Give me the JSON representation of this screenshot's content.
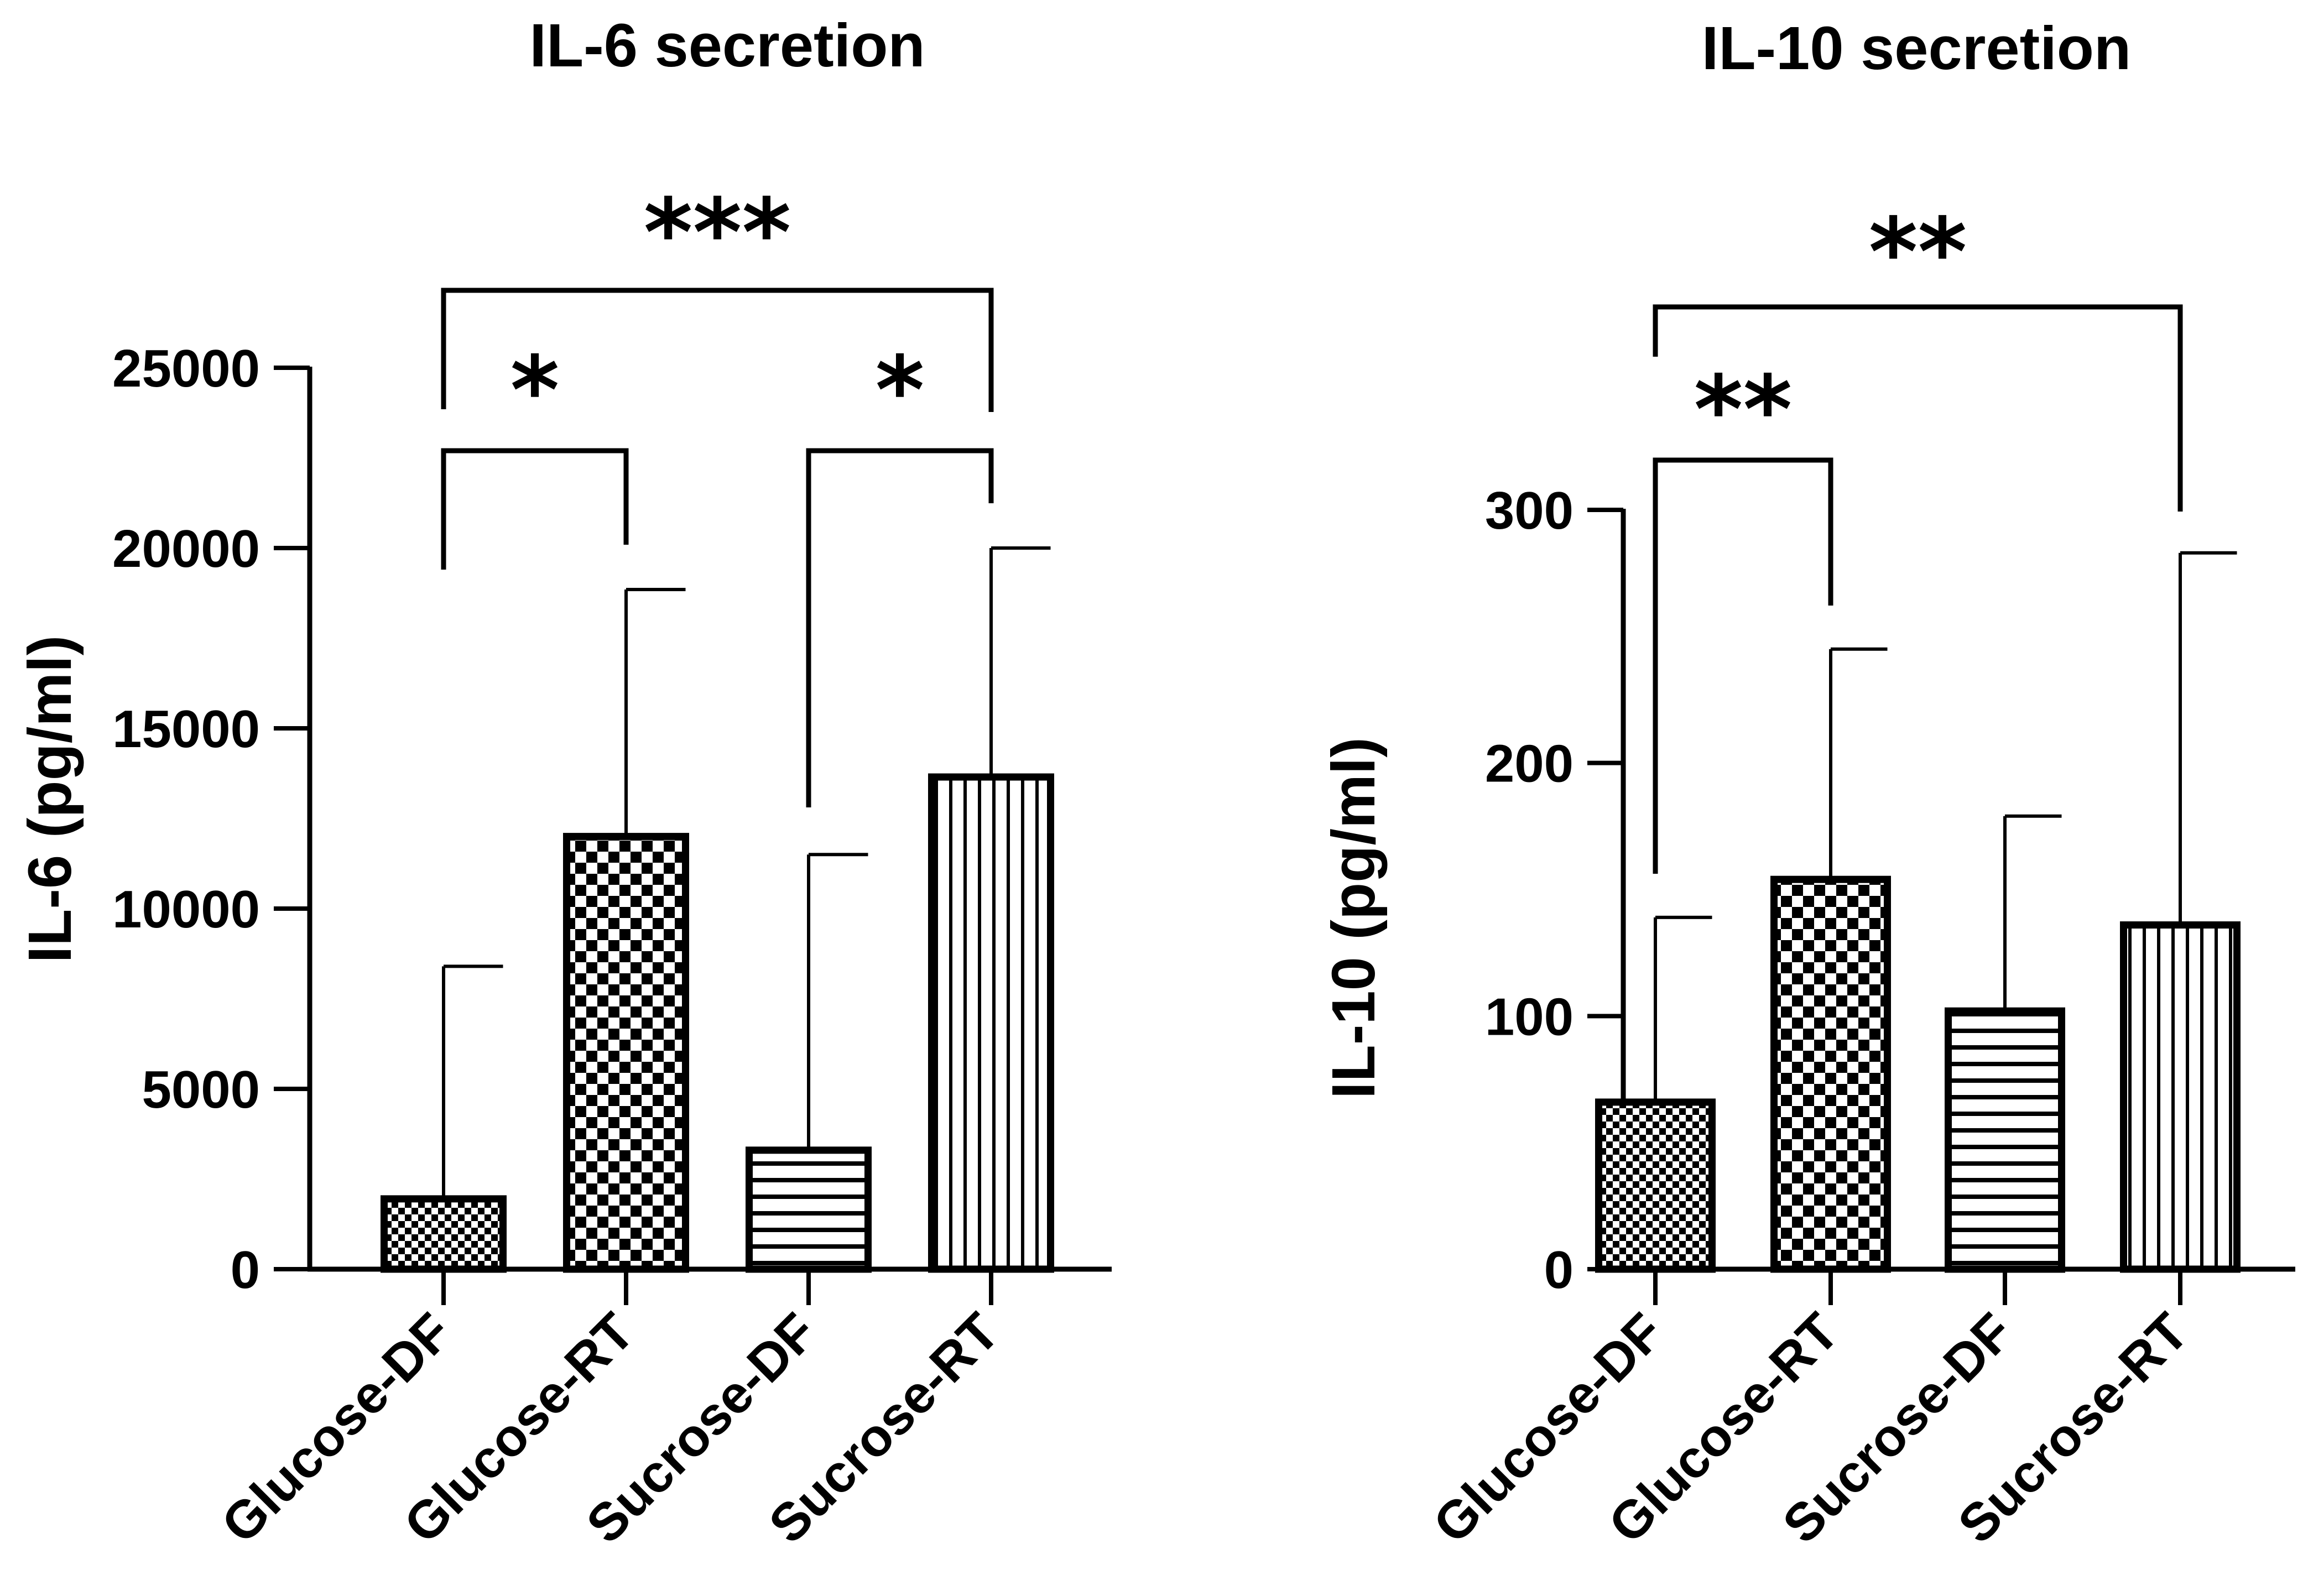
{
  "chart_data": [
    {
      "type": "bar",
      "title": "IL-6 secretion",
      "xlabel": "",
      "ylabel": "IL-6 (pg/ml)",
      "categories": [
        "Glucose-DF",
        "Glucose-RT",
        "Sucrose-DF",
        "Sucrose-RT"
      ],
      "values": [
        1950,
        12000,
        3300,
        13650
      ],
      "error_upper": [
        8400,
        18850,
        11500,
        20000
      ],
      "ylim": [
        0,
        25000
      ],
      "yticks": [
        0,
        5000,
        10000,
        15000,
        20000,
        25000
      ],
      "ytick_labels": [
        "0",
        "5000",
        "10000",
        "15000",
        "20000",
        "25000"
      ],
      "patterns": [
        "fine-checker",
        "checker",
        "horizontal",
        "vertical"
      ],
      "significance": [
        {
          "from": 0,
          "to": 1,
          "label": "*"
        },
        {
          "from": 2,
          "to": 3,
          "label": "*"
        },
        {
          "from": 0,
          "to": 3,
          "label": "***"
        }
      ]
    },
    {
      "type": "bar",
      "title": "IL-10 secretion",
      "xlabel": "",
      "ylabel": "IL-10 (pg/ml)",
      "categories": [
        "Glucose-DF",
        "Glucose-RT",
        "Sucrose-DF",
        "Sucrose-RT"
      ],
      "values": [
        66,
        154,
        102,
        136
      ],
      "error_upper": [
        139,
        245,
        179,
        283
      ],
      "ylim": [
        0,
        300
      ],
      "yticks": [
        0,
        100,
        200,
        300
      ],
      "ytick_labels": [
        "0",
        "100",
        "200",
        "300"
      ],
      "patterns": [
        "fine-checker",
        "checker",
        "horizontal",
        "vertical"
      ],
      "significance": [
        {
          "from": 0,
          "to": 1,
          "label": "**"
        },
        {
          "from": 0,
          "to": 3,
          "label": "**"
        }
      ]
    }
  ]
}
